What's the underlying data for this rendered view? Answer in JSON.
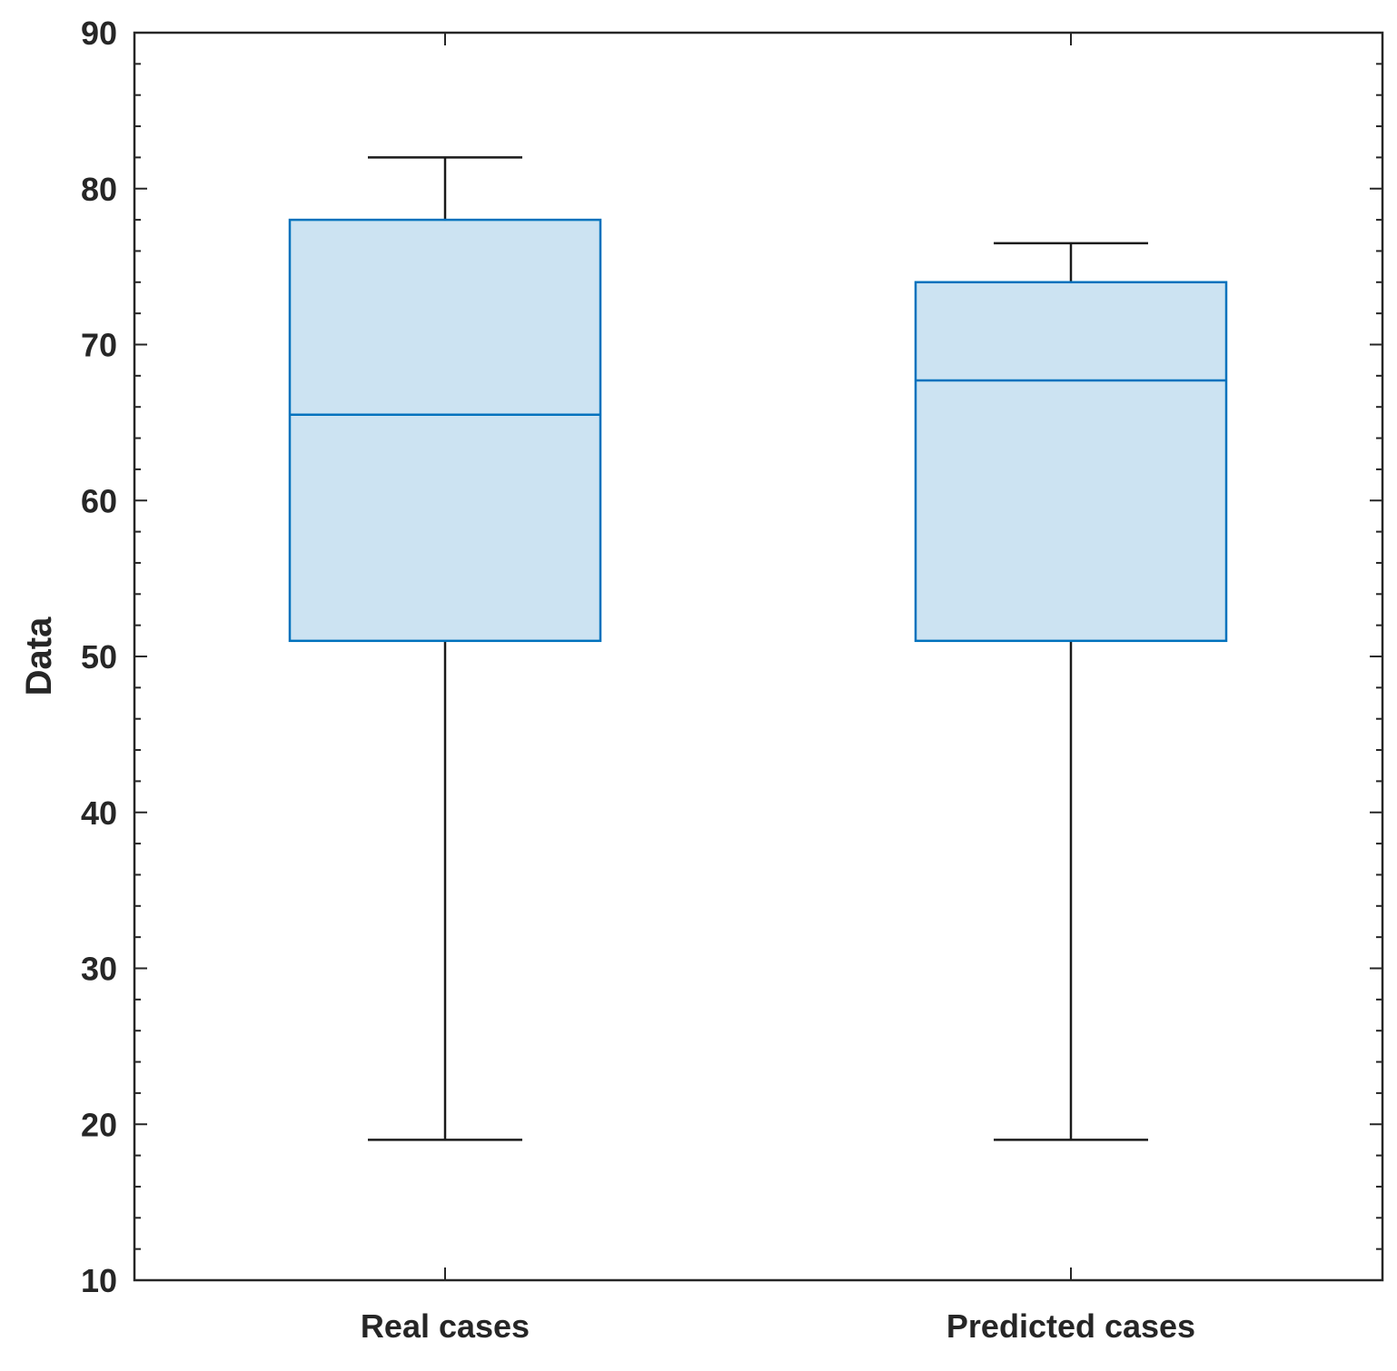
{
  "chart_data": {
    "type": "box",
    "title": "",
    "xlabel": "",
    "ylabel": "Data",
    "ylim": [
      10,
      90
    ],
    "yticks": [
      10,
      20,
      30,
      40,
      50,
      60,
      70,
      80,
      90
    ],
    "minor_tick_step": 2,
    "categories": [
      "Real cases",
      "Predicted cases"
    ],
    "boxes": [
      {
        "name": "Real cases",
        "whisker_low": 19,
        "q1": 51,
        "median": 65.5,
        "q3": 78,
        "whisker_high": 82
      },
      {
        "name": "Predicted cases",
        "whisker_low": 19,
        "q1": 51,
        "median": 67.7,
        "q3": 74,
        "whisker_high": 76.5
      }
    ],
    "colors": {
      "box_fill": "#cce3f2",
      "box_edge": "#0072bd",
      "whisker": "#1a1a1a",
      "axis": "#262626"
    }
  }
}
